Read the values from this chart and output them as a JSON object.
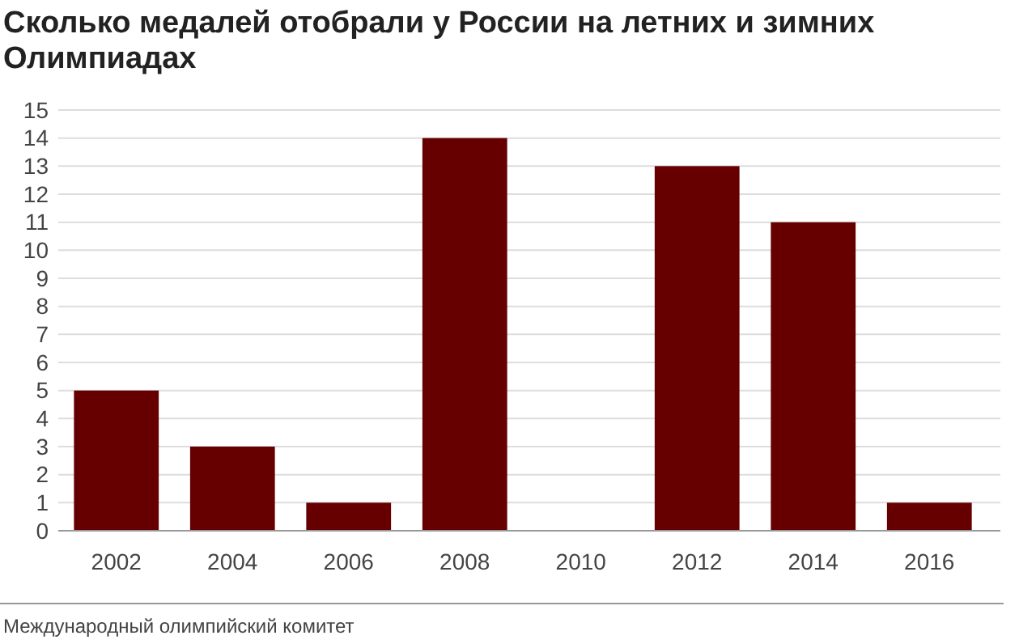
{
  "chart_data": {
    "type": "bar",
    "title": "Сколько медалей отобрали у России на летних и зимних Олимпиадах",
    "categories": [
      "2002",
      "2004",
      "2006",
      "2008",
      "2010",
      "2012",
      "2014",
      "2016"
    ],
    "values": [
      5,
      3,
      1,
      14,
      0,
      13,
      11,
      1
    ],
    "color": "#660000",
    "ylim": [
      0,
      15
    ],
    "yticks": [
      0,
      1,
      2,
      3,
      4,
      5,
      6,
      7,
      8,
      9,
      10,
      11,
      12,
      13,
      14,
      15
    ],
    "grid": "y",
    "annotations": [
      "Международный олимпийский комитет"
    ]
  }
}
